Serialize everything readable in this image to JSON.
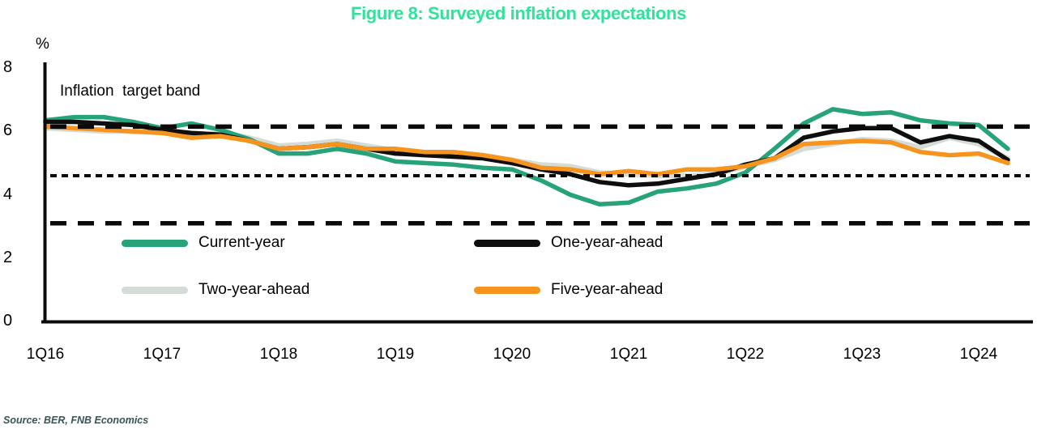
{
  "title": "Figure 8: Surveyed inflation expectations",
  "title_color": "#2EE39B",
  "annotation": "Inflation  target band",
  "source": "Source: BER, FNB Economics",
  "chart_data": {
    "type": "line",
    "title": "Figure 8: Surveyed inflation expectations",
    "ylabel": "%",
    "xlabel": "",
    "ylim": [
      0,
      8
    ],
    "grid": false,
    "legend_position": "inside-bottom-left",
    "y_axis": {
      "unit": "%",
      "ticks": [
        8,
        6,
        4,
        2,
        0
      ]
    },
    "x_axis": {
      "tick_labels": [
        "1Q16",
        "1Q17",
        "1Q18",
        "1Q19",
        "1Q20",
        "1Q21",
        "1Q22",
        "1Q23",
        "1Q24"
      ],
      "tick_indices": [
        0,
        4,
        8,
        12,
        16,
        20,
        24,
        28,
        32
      ]
    },
    "periods": [
      "1Q16",
      "2Q16",
      "3Q16",
      "4Q16",
      "1Q17",
      "2Q17",
      "3Q17",
      "4Q17",
      "1Q18",
      "2Q18",
      "3Q18",
      "4Q18",
      "1Q19",
      "2Q19",
      "3Q19",
      "4Q19",
      "1Q20",
      "2Q20",
      "3Q20",
      "4Q20",
      "1Q21",
      "2Q21",
      "3Q21",
      "4Q21",
      "1Q22",
      "2Q22",
      "3Q22",
      "4Q22",
      "1Q23",
      "2Q23",
      "3Q23",
      "4Q23",
      "1Q24",
      "2Q24"
    ],
    "reference_lines": [
      {
        "name": "inflation-target-band-upper",
        "value": 6.15,
        "style": "dashed"
      },
      {
        "name": "inflation-target-band-midpoint",
        "value": 4.6,
        "style": "dotted"
      },
      {
        "name": "inflation-target-band-lower",
        "value": 3.1,
        "style": "dashed"
      }
    ],
    "series": [
      {
        "name": "Current-year",
        "color": "#26A37B",
        "values": [
          6.35,
          6.45,
          6.45,
          6.3,
          6.1,
          6.25,
          6.05,
          5.75,
          5.3,
          5.3,
          5.45,
          5.3,
          5.05,
          5.0,
          4.95,
          4.85,
          4.8,
          4.45,
          4.0,
          3.7,
          3.75,
          4.1,
          4.2,
          4.35,
          4.7,
          5.45,
          6.25,
          6.7,
          6.55,
          6.6,
          6.35,
          6.25,
          6.2,
          5.45
        ]
      },
      {
        "name": "One-year-ahead",
        "color": "#0E0E0E",
        "values": [
          6.3,
          6.3,
          6.25,
          6.2,
          6.05,
          5.95,
          5.9,
          5.7,
          5.45,
          5.5,
          5.6,
          5.45,
          5.3,
          5.25,
          5.2,
          5.15,
          5.0,
          4.8,
          4.65,
          4.4,
          4.3,
          4.35,
          4.5,
          4.65,
          4.95,
          5.15,
          5.8,
          6.0,
          6.1,
          6.1,
          5.65,
          5.85,
          5.7,
          5.1
        ]
      },
      {
        "name": "Two-year-ahead",
        "color": "#D4DCD7",
        "values": [
          6.1,
          6.05,
          6.0,
          6.0,
          5.95,
          5.85,
          5.95,
          5.8,
          5.55,
          5.6,
          5.7,
          5.55,
          5.4,
          5.3,
          5.3,
          5.2,
          5.1,
          4.95,
          4.9,
          4.7,
          4.65,
          4.6,
          4.6,
          4.65,
          4.9,
          5.1,
          5.45,
          5.6,
          5.75,
          5.7,
          5.5,
          5.8,
          5.6,
          5.15
        ]
      },
      {
        "name": "Five-year-ahead",
        "color": "#F7941D",
        "values": [
          6.15,
          6.1,
          6.05,
          6.0,
          5.95,
          5.8,
          5.85,
          5.7,
          5.45,
          5.5,
          5.6,
          5.45,
          5.45,
          5.35,
          5.35,
          5.25,
          5.1,
          4.85,
          4.8,
          4.65,
          4.75,
          4.65,
          4.8,
          4.8,
          4.9,
          5.15,
          5.6,
          5.65,
          5.7,
          5.65,
          5.35,
          5.25,
          5.3,
          5.0
        ]
      }
    ],
    "draw_order": [
      2,
      0,
      1,
      3
    ]
  }
}
